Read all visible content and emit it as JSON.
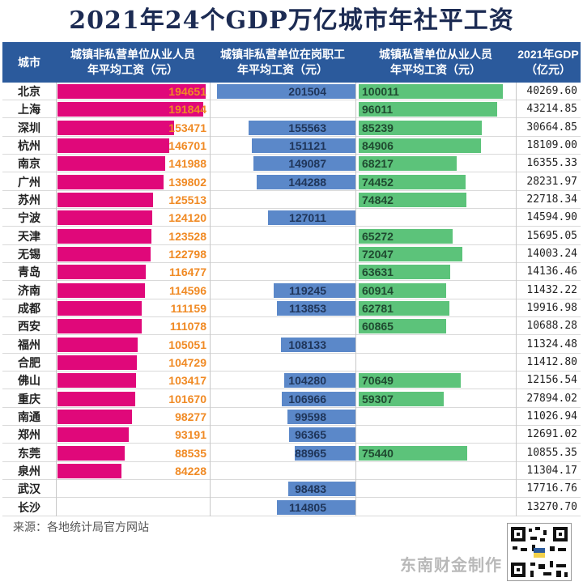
{
  "title": "2021年24个GDP万亿城市年社平工资",
  "headers": {
    "city": "城市",
    "col1": "城镇非私营单位从业人员\n年平均工资（元）",
    "col2": "城镇非私营单位在岗职工\n年平均工资（元）",
    "col3": "城镇私营单位从业人员\n年平均工资（元）",
    "gdp": "2021年GDP\n（亿元）"
  },
  "colors": {
    "col1": "#e0087a",
    "col2": "#5b88c9",
    "col3": "#5cc37a",
    "header": "#2b5a9c"
  },
  "chart_data": {
    "type": "table",
    "title": "2021年24个GDP万亿城市年社平工资",
    "categories": [
      "北京",
      "上海",
      "深圳",
      "杭州",
      "南京",
      "广州",
      "苏州",
      "宁波",
      "天津",
      "无锡",
      "青岛",
      "济南",
      "成都",
      "西安",
      "福州",
      "合肥",
      "佛山",
      "重庆",
      "南通",
      "郑州",
      "东莞",
      "泉州",
      "武汉",
      "长沙"
    ],
    "series": [
      {
        "name": "城镇非私营单位从业人员年平均工资（元）",
        "values": [
          194651,
          191844,
          153471,
          146701,
          141988,
          139802,
          125513,
          124120,
          123528,
          122798,
          116477,
          114596,
          111159,
          111078,
          105051,
          104729,
          103417,
          101670,
          98277,
          93191,
          88535,
          84228,
          null,
          null
        ]
      },
      {
        "name": "城镇非私营单位在岗职工年平均工资（元）",
        "values": [
          201504,
          null,
          155563,
          151121,
          149087,
          144288,
          null,
          127011,
          null,
          null,
          null,
          119245,
          113853,
          null,
          108133,
          null,
          104280,
          106966,
          99598,
          96365,
          88965,
          null,
          98483,
          114805
        ]
      },
      {
        "name": "城镇私营单位从业人员年平均工资（元）",
        "values": [
          100011,
          96011,
          85239,
          84906,
          68217,
          74452,
          74842,
          null,
          65272,
          72047,
          63631,
          60914,
          62781,
          60865,
          null,
          null,
          70649,
          59307,
          null,
          null,
          75440,
          null,
          null,
          null
        ]
      },
      {
        "name": "2021年GDP（亿元）",
        "values": [
          "40269.60",
          "43214.85",
          "30664.85",
          "18109.00",
          "16355.33",
          "28231.97",
          "22718.34",
          "14594.90",
          "15695.05",
          "14003.24",
          "14136.46",
          "11432.22",
          "19916.98",
          "10688.28",
          "11324.48",
          "11412.80",
          "12156.54",
          "27894.02",
          "11026.94",
          "12691.02",
          "10855.35",
          "11304.17",
          "17716.76",
          "13270.70"
        ]
      }
    ]
  },
  "source": "来源：各地统计局官方网站",
  "brand": "东南财金制作"
}
